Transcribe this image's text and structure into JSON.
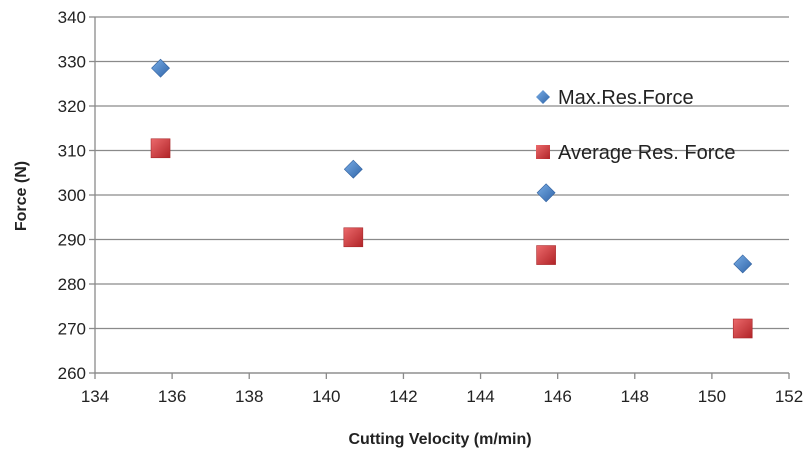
{
  "chart_data": {
    "type": "scatter",
    "title": "",
    "xlabel": "Cutting Velocity (m/min)",
    "ylabel": "Force (N)",
    "xlim": [
      134,
      152
    ],
    "ylim": [
      260,
      340
    ],
    "xticks": [
      134,
      136,
      138,
      140,
      142,
      144,
      146,
      148,
      150,
      152
    ],
    "yticks": [
      260,
      270,
      280,
      290,
      300,
      310,
      320,
      330,
      340
    ],
    "grid": {
      "horizontal": true,
      "vertical": false
    },
    "legend": {
      "placement": "right, inside plot"
    },
    "series": [
      {
        "name": "Max.Res.Force",
        "marker": "diamond",
        "color": "#4a7fc1",
        "points": [
          [
            135.7,
            328.5
          ],
          [
            140.7,
            305.8
          ],
          [
            145.7,
            300.5
          ],
          [
            150.8,
            284.5
          ]
        ]
      },
      {
        "name": "Average Res. Force",
        "marker": "square",
        "color": "#d2363a",
        "points": [
          [
            135.7,
            310.5
          ],
          [
            140.7,
            290.5
          ],
          [
            145.7,
            286.5
          ],
          [
            150.8,
            270
          ]
        ]
      }
    ]
  }
}
